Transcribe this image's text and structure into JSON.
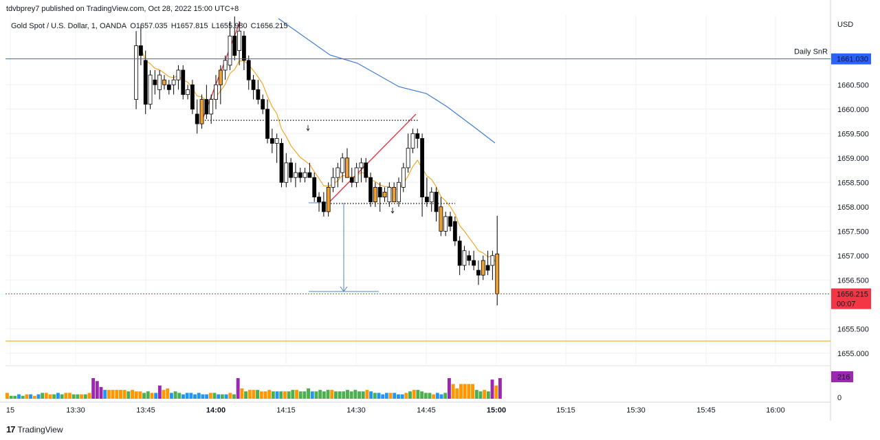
{
  "header": {
    "publisher_line": "tdvbprey7 published on TradingView.com, Oct 28, 2022 15:00 UTC+8"
  },
  "legend": {
    "symbol": "Gold Spot / U.S. Dollar, 1, OANDA",
    "open": "O1657.035",
    "high": "H1657.815",
    "low": "L1655.980",
    "close": "C1656.215"
  },
  "footer": {
    "logo_mark": "17",
    "brand": "TradingView"
  },
  "colors": {
    "up_body": "#ffffff",
    "down_body": "#000000",
    "highlight_body": "#f0a030",
    "ema_fast": "#f5a623",
    "ema_slow": "#3e7bd6",
    "snr_line": "#2962ff",
    "support_line": "#f5a623",
    "last_price": "#f23645",
    "wedge": "#e04050",
    "measure": "#4a86c8",
    "vol_green": "#4caf50",
    "vol_orange": "#ff9800",
    "vol_blue": "#2196f3",
    "vol_red": "#f44336",
    "vol_purple": "#9c27b0"
  },
  "chart_data": {
    "type": "candlestick",
    "currency_label": "USD",
    "y_ticks": [
      "1660.500",
      "1660.000",
      "1659.500",
      "1659.000",
      "1658.500",
      "1658.000",
      "1657.500",
      "1657.000",
      "1656.500",
      "1655.500",
      "1655.000"
    ],
    "ylim": [
      1654.8,
      1661.8
    ],
    "x_ticks": [
      "15",
      "13:30",
      "13:45",
      "14:00",
      "14:15",
      "14:30",
      "14:45",
      "15:00",
      "15:15",
      "15:30",
      "15:45",
      "16:00"
    ],
    "horizontal_levels": [
      {
        "label": "Daily SnR",
        "value": 1661.03,
        "tag": "1661.030"
      },
      {
        "label": "",
        "value": 1655.25,
        "tag": ""
      }
    ],
    "last_price": {
      "value": 1656.215,
      "tag": "1656.215",
      "countdown": "00:07"
    },
    "volume_last": "216",
    "volume_zero_label": "0",
    "candles": [
      {
        "t": "13:43",
        "o": 1660.2,
        "h": 1661.6,
        "l": 1660.0,
        "c": 1661.3,
        "hl": false
      },
      {
        "t": "13:44",
        "o": 1661.3,
        "h": 1661.7,
        "l": 1660.9,
        "c": 1661.1,
        "hl": false
      },
      {
        "t": "13:45",
        "o": 1661.0,
        "h": 1661.2,
        "l": 1659.9,
        "c": 1660.1,
        "hl": false
      },
      {
        "t": "13:46",
        "o": 1660.1,
        "h": 1660.8,
        "l": 1660.0,
        "c": 1660.7,
        "hl": false
      },
      {
        "t": "13:47",
        "o": 1660.6,
        "h": 1660.8,
        "l": 1660.3,
        "c": 1660.5,
        "hl": false
      },
      {
        "t": "13:48",
        "o": 1660.4,
        "h": 1660.8,
        "l": 1660.2,
        "c": 1660.7,
        "hl": false
      },
      {
        "t": "13:49",
        "o": 1660.6,
        "h": 1660.7,
        "l": 1660.4,
        "c": 1660.5,
        "hl": true
      },
      {
        "t": "13:50",
        "o": 1660.5,
        "h": 1660.6,
        "l": 1660.3,
        "c": 1660.4,
        "hl": false
      },
      {
        "t": "13:51",
        "o": 1660.5,
        "h": 1660.7,
        "l": 1660.3,
        "c": 1660.6,
        "hl": false
      },
      {
        "t": "13:52",
        "o": 1660.6,
        "h": 1660.9,
        "l": 1660.4,
        "c": 1660.8,
        "hl": false
      },
      {
        "t": "13:53",
        "o": 1660.8,
        "h": 1660.9,
        "l": 1660.2,
        "c": 1660.3,
        "hl": false
      },
      {
        "t": "13:54",
        "o": 1660.3,
        "h": 1660.5,
        "l": 1660.2,
        "c": 1660.4,
        "hl": false
      },
      {
        "t": "13:55",
        "o": 1660.5,
        "h": 1660.6,
        "l": 1659.9,
        "c": 1660.0,
        "hl": false
      },
      {
        "t": "13:56",
        "o": 1659.9,
        "h": 1660.2,
        "l": 1659.5,
        "c": 1659.7,
        "hl": false
      },
      {
        "t": "13:57",
        "o": 1659.7,
        "h": 1660.3,
        "l": 1659.6,
        "c": 1660.2,
        "hl": true
      },
      {
        "t": "13:58",
        "o": 1660.2,
        "h": 1660.5,
        "l": 1659.8,
        "c": 1659.9,
        "hl": false
      },
      {
        "t": "13:59",
        "o": 1659.9,
        "h": 1660.3,
        "l": 1659.7,
        "c": 1660.2,
        "hl": false
      },
      {
        "t": "14:00",
        "o": 1660.2,
        "h": 1660.7,
        "l": 1660.0,
        "c": 1660.5,
        "hl": false
      },
      {
        "t": "14:01",
        "o": 1660.5,
        "h": 1660.9,
        "l": 1660.1,
        "c": 1660.8,
        "hl": true
      },
      {
        "t": "14:02",
        "o": 1660.8,
        "h": 1661.1,
        "l": 1660.6,
        "c": 1661.0,
        "hl": false
      },
      {
        "t": "14:03",
        "o": 1660.9,
        "h": 1661.8,
        "l": 1660.8,
        "c": 1661.5,
        "hl": false
      },
      {
        "t": "14:04",
        "o": 1661.5,
        "h": 1661.9,
        "l": 1661.0,
        "c": 1661.1,
        "hl": false
      },
      {
        "t": "14:05",
        "o": 1661.2,
        "h": 1661.8,
        "l": 1660.9,
        "c": 1661.6,
        "hl": false
      },
      {
        "t": "14:06",
        "o": 1661.5,
        "h": 1661.6,
        "l": 1660.8,
        "c": 1661.0,
        "hl": false
      },
      {
        "t": "14:07",
        "o": 1661.0,
        "h": 1661.1,
        "l": 1660.4,
        "c": 1660.6,
        "hl": false
      },
      {
        "t": "14:08",
        "o": 1660.6,
        "h": 1660.7,
        "l": 1660.2,
        "c": 1660.4,
        "hl": false
      },
      {
        "t": "14:09",
        "o": 1660.4,
        "h": 1660.6,
        "l": 1660.1,
        "c": 1660.2,
        "hl": false
      },
      {
        "t": "14:10",
        "o": 1660.2,
        "h": 1660.3,
        "l": 1659.9,
        "c": 1660.0,
        "hl": false
      },
      {
        "t": "14:11",
        "o": 1660.0,
        "h": 1660.2,
        "l": 1659.3,
        "c": 1659.4,
        "hl": false
      },
      {
        "t": "14:12",
        "o": 1659.4,
        "h": 1659.6,
        "l": 1659.1,
        "c": 1659.3,
        "hl": false
      },
      {
        "t": "14:13",
        "o": 1659.3,
        "h": 1659.5,
        "l": 1658.9,
        "c": 1659.4,
        "hl": false
      },
      {
        "t": "14:14",
        "o": 1659.3,
        "h": 1659.4,
        "l": 1658.4,
        "c": 1658.5,
        "hl": false
      },
      {
        "t": "14:15",
        "o": 1658.5,
        "h": 1659.1,
        "l": 1658.4,
        "c": 1658.9,
        "hl": false
      },
      {
        "t": "14:16",
        "o": 1658.9,
        "h": 1659.0,
        "l": 1658.5,
        "c": 1658.6,
        "hl": false
      },
      {
        "t": "14:17",
        "o": 1658.6,
        "h": 1658.9,
        "l": 1658.4,
        "c": 1658.7,
        "hl": false
      },
      {
        "t": "14:18",
        "o": 1658.7,
        "h": 1658.8,
        "l": 1658.5,
        "c": 1658.6,
        "hl": false
      },
      {
        "t": "14:19",
        "o": 1658.6,
        "h": 1658.8,
        "l": 1658.5,
        "c": 1658.7,
        "hl": false
      },
      {
        "t": "14:20",
        "o": 1658.7,
        "h": 1658.9,
        "l": 1658.6,
        "c": 1658.6,
        "hl": false
      },
      {
        "t": "14:21",
        "o": 1658.6,
        "h": 1658.7,
        "l": 1658.1,
        "c": 1658.2,
        "hl": false
      },
      {
        "t": "14:22",
        "o": 1658.2,
        "h": 1658.3,
        "l": 1657.9,
        "c": 1658.1,
        "hl": false
      },
      {
        "t": "14:23",
        "o": 1658.1,
        "h": 1658.3,
        "l": 1657.8,
        "c": 1657.9,
        "hl": false
      },
      {
        "t": "14:24",
        "o": 1657.9,
        "h": 1658.5,
        "l": 1657.8,
        "c": 1658.4,
        "hl": true
      },
      {
        "t": "14:25",
        "o": 1658.4,
        "h": 1658.8,
        "l": 1658.3,
        "c": 1658.6,
        "hl": false
      },
      {
        "t": "14:26",
        "o": 1658.6,
        "h": 1658.9,
        "l": 1658.4,
        "c": 1658.8,
        "hl": false
      },
      {
        "t": "14:27",
        "o": 1658.7,
        "h": 1659.1,
        "l": 1658.5,
        "c": 1659.0,
        "hl": false
      },
      {
        "t": "14:28",
        "o": 1659.0,
        "h": 1659.2,
        "l": 1658.6,
        "c": 1658.6,
        "hl": true
      },
      {
        "t": "14:29",
        "o": 1658.6,
        "h": 1658.8,
        "l": 1658.4,
        "c": 1658.5,
        "hl": false
      },
      {
        "t": "14:30",
        "o": 1658.5,
        "h": 1658.9,
        "l": 1658.4,
        "c": 1658.8,
        "hl": false
      },
      {
        "t": "14:31",
        "o": 1658.8,
        "h": 1659.0,
        "l": 1658.5,
        "c": 1658.9,
        "hl": false
      },
      {
        "t": "14:32",
        "o": 1658.9,
        "h": 1659.0,
        "l": 1658.5,
        "c": 1658.6,
        "hl": false
      },
      {
        "t": "14:33",
        "o": 1658.6,
        "h": 1658.7,
        "l": 1658.0,
        "c": 1658.1,
        "hl": false
      },
      {
        "t": "14:34",
        "o": 1658.1,
        "h": 1658.5,
        "l": 1658.0,
        "c": 1658.4,
        "hl": true
      },
      {
        "t": "14:35",
        "o": 1658.4,
        "h": 1658.5,
        "l": 1657.9,
        "c": 1658.2,
        "hl": false
      },
      {
        "t": "14:36",
        "o": 1658.2,
        "h": 1658.4,
        "l": 1658.1,
        "c": 1658.3,
        "hl": true
      },
      {
        "t": "14:37",
        "o": 1658.1,
        "h": 1658.5,
        "l": 1658.0,
        "c": 1658.4,
        "hl": false
      },
      {
        "t": "14:38",
        "o": 1658.4,
        "h": 1658.5,
        "l": 1658.1,
        "c": 1658.1,
        "hl": true
      },
      {
        "t": "14:39",
        "o": 1658.1,
        "h": 1658.6,
        "l": 1658.0,
        "c": 1658.5,
        "hl": false
      },
      {
        "t": "14:40",
        "o": 1658.4,
        "h": 1658.9,
        "l": 1658.3,
        "c": 1658.8,
        "hl": false
      },
      {
        "t": "14:41",
        "o": 1658.8,
        "h": 1659.5,
        "l": 1658.7,
        "c": 1659.2,
        "hl": false
      },
      {
        "t": "14:42",
        "o": 1659.2,
        "h": 1659.6,
        "l": 1659.1,
        "c": 1659.5,
        "hl": false
      },
      {
        "t": "14:43",
        "o": 1659.5,
        "h": 1659.6,
        "l": 1659.2,
        "c": 1659.4,
        "hl": false
      },
      {
        "t": "14:44",
        "o": 1659.4,
        "h": 1659.5,
        "l": 1657.8,
        "c": 1658.2,
        "hl": false
      },
      {
        "t": "14:45",
        "o": 1658.2,
        "h": 1658.6,
        "l": 1658.0,
        "c": 1658.1,
        "hl": false
      },
      {
        "t": "14:46",
        "o": 1658.1,
        "h": 1658.4,
        "l": 1657.9,
        "c": 1658.3,
        "hl": false
      },
      {
        "t": "14:47",
        "o": 1658.3,
        "h": 1658.4,
        "l": 1657.7,
        "c": 1657.9,
        "hl": false
      },
      {
        "t": "14:48",
        "o": 1658.0,
        "h": 1658.2,
        "l": 1657.4,
        "c": 1657.5,
        "hl": true
      },
      {
        "t": "14:49",
        "o": 1657.5,
        "h": 1657.9,
        "l": 1657.4,
        "c": 1657.8,
        "hl": false
      },
      {
        "t": "14:50",
        "o": 1657.8,
        "h": 1657.9,
        "l": 1657.5,
        "c": 1657.6,
        "hl": false
      },
      {
        "t": "14:51",
        "o": 1657.7,
        "h": 1657.8,
        "l": 1657.2,
        "c": 1657.3,
        "hl": false
      },
      {
        "t": "14:52",
        "o": 1657.3,
        "h": 1657.4,
        "l": 1656.6,
        "c": 1656.8,
        "hl": false
      },
      {
        "t": "14:53",
        "o": 1656.8,
        "h": 1657.2,
        "l": 1656.7,
        "c": 1657.1,
        "hl": false
      },
      {
        "t": "14:54",
        "o": 1657.0,
        "h": 1657.1,
        "l": 1656.8,
        "c": 1656.9,
        "hl": false
      },
      {
        "t": "14:55",
        "o": 1656.9,
        "h": 1657.1,
        "l": 1656.7,
        "c": 1656.8,
        "hl": false
      },
      {
        "t": "14:56",
        "o": 1656.7,
        "h": 1656.9,
        "l": 1656.4,
        "c": 1656.6,
        "hl": false
      },
      {
        "t": "14:57",
        "o": 1656.6,
        "h": 1657.0,
        "l": 1656.5,
        "c": 1656.9,
        "hl": true
      },
      {
        "t": "14:58",
        "o": 1656.8,
        "h": 1657.1,
        "l": 1656.6,
        "c": 1656.7,
        "hl": false
      },
      {
        "t": "14:59",
        "o": 1656.8,
        "h": 1657.1,
        "l": 1656.5,
        "c": 1657.0,
        "hl": false
      },
      {
        "t": "15:00",
        "o": 1657.035,
        "h": 1657.815,
        "l": 1655.98,
        "c": 1656.215,
        "hl": true
      }
    ],
    "volumes": [
      {
        "v": 4,
        "c": "orange"
      },
      {
        "v": 2,
        "c": "green"
      },
      {
        "v": 2,
        "c": "green"
      },
      {
        "v": 3,
        "c": "blue"
      },
      {
        "v": 2,
        "c": "green"
      },
      {
        "v": 3,
        "c": "orange"
      },
      {
        "v": 3,
        "c": "blue"
      },
      {
        "v": 2,
        "c": "orange"
      },
      {
        "v": 3,
        "c": "blue"
      },
      {
        "v": 4,
        "c": "green"
      },
      {
        "v": 4,
        "c": "orange"
      },
      {
        "v": 3,
        "c": "orange"
      },
      {
        "v": 3,
        "c": "green"
      },
      {
        "v": 4,
        "c": "blue"
      },
      {
        "v": 3,
        "c": "green"
      },
      {
        "v": 4,
        "c": "orange"
      },
      {
        "v": 4,
        "c": "orange"
      },
      {
        "v": 3,
        "c": "green"
      },
      {
        "v": 3,
        "c": "green"
      },
      {
        "v": 3,
        "c": "orange"
      },
      {
        "v": 3,
        "c": "green"
      },
      {
        "v": 4,
        "c": "orange"
      },
      {
        "v": 14,
        "c": "purple"
      },
      {
        "v": 12,
        "c": "purple"
      },
      {
        "v": 8,
        "c": "purple"
      },
      {
        "v": 6,
        "c": "blue"
      },
      {
        "v": 6,
        "c": "orange"
      },
      {
        "v": 6,
        "c": "orange"
      },
      {
        "v": 6,
        "c": "orange"
      },
      {
        "v": 6,
        "c": "orange"
      },
      {
        "v": 6,
        "c": "orange"
      },
      {
        "v": 5,
        "c": "green"
      },
      {
        "v": 6,
        "c": "orange"
      },
      {
        "v": 5,
        "c": "orange"
      },
      {
        "v": 5,
        "c": "orange"
      },
      {
        "v": 4,
        "c": "green"
      },
      {
        "v": 5,
        "c": "green"
      },
      {
        "v": 4,
        "c": "orange"
      },
      {
        "v": 4,
        "c": "blue"
      },
      {
        "v": 9,
        "c": "purple"
      },
      {
        "v": 6,
        "c": "orange"
      },
      {
        "v": 7,
        "c": "orange"
      },
      {
        "v": 4,
        "c": "blue"
      },
      {
        "v": 5,
        "c": "green"
      },
      {
        "v": 4,
        "c": "green"
      },
      {
        "v": 3,
        "c": "blue"
      },
      {
        "v": 4,
        "c": "blue"
      },
      {
        "v": 4,
        "c": "blue"
      },
      {
        "v": 3,
        "c": "blue"
      },
      {
        "v": 4,
        "c": "blue"
      },
      {
        "v": 3,
        "c": "blue"
      },
      {
        "v": 3,
        "c": "blue"
      },
      {
        "v": 4,
        "c": "orange"
      },
      {
        "v": 4,
        "c": "green"
      },
      {
        "v": 3,
        "c": "blue"
      },
      {
        "v": 3,
        "c": "green"
      },
      {
        "v": 3,
        "c": "blue"
      },
      {
        "v": 4,
        "c": "orange"
      },
      {
        "v": 3,
        "c": "green"
      },
      {
        "v": 14,
        "c": "purple"
      },
      {
        "v": 7,
        "c": "orange"
      },
      {
        "v": 5,
        "c": "green"
      },
      {
        "v": 6,
        "c": "orange"
      },
      {
        "v": 6,
        "c": "orange"
      },
      {
        "v": 6,
        "c": "green"
      },
      {
        "v": 5,
        "c": "orange"
      },
      {
        "v": 5,
        "c": "orange"
      },
      {
        "v": 6,
        "c": "orange"
      },
      {
        "v": 5,
        "c": "green"
      },
      {
        "v": 5,
        "c": "blue"
      },
      {
        "v": 5,
        "c": "green"
      },
      {
        "v": 5,
        "c": "orange"
      },
      {
        "v": 5,
        "c": "green"
      },
      {
        "v": 6,
        "c": "green"
      },
      {
        "v": 6,
        "c": "orange"
      },
      {
        "v": 5,
        "c": "green"
      },
      {
        "v": 5,
        "c": "green"
      },
      {
        "v": 7,
        "c": "green"
      },
      {
        "v": 5,
        "c": "blue"
      },
      {
        "v": 5,
        "c": "green"
      },
      {
        "v": 6,
        "c": "green"
      },
      {
        "v": 5,
        "c": "green"
      },
      {
        "v": 6,
        "c": "green"
      },
      {
        "v": 6,
        "c": "orange"
      },
      {
        "v": 5,
        "c": "green"
      },
      {
        "v": 5,
        "c": "green"
      },
      {
        "v": 5,
        "c": "green"
      },
      {
        "v": 6,
        "c": "green"
      },
      {
        "v": 5,
        "c": "green"
      },
      {
        "v": 6,
        "c": "green"
      },
      {
        "v": 5,
        "c": "green"
      },
      {
        "v": 5,
        "c": "green"
      },
      {
        "v": 6,
        "c": "orange"
      },
      {
        "v": 5,
        "c": "blue"
      },
      {
        "v": 4,
        "c": "green"
      },
      {
        "v": 4,
        "c": "blue"
      },
      {
        "v": 3,
        "c": "blue"
      },
      {
        "v": 4,
        "c": "blue"
      },
      {
        "v": 4,
        "c": "orange"
      },
      {
        "v": 4,
        "c": "blue"
      },
      {
        "v": 3,
        "c": "blue"
      },
      {
        "v": 3,
        "c": "blue"
      },
      {
        "v": 4,
        "c": "orange"
      },
      {
        "v": 5,
        "c": "green"
      },
      {
        "v": 6,
        "c": "orange"
      },
      {
        "v": 6,
        "c": "green"
      },
      {
        "v": 5,
        "c": "green"
      },
      {
        "v": 4,
        "c": "green"
      },
      {
        "v": 4,
        "c": "green"
      },
      {
        "v": 3,
        "c": "orange"
      },
      {
        "v": 4,
        "c": "blue"
      },
      {
        "v": 3,
        "c": "blue"
      },
      {
        "v": 4,
        "c": "green"
      },
      {
        "v": 14,
        "c": "purple"
      },
      {
        "v": 10,
        "c": "orange"
      },
      {
        "v": 7,
        "c": "orange"
      },
      {
        "v": 10,
        "c": "orange"
      },
      {
        "v": 10,
        "c": "orange"
      },
      {
        "v": 10,
        "c": "orange"
      },
      {
        "v": 10,
        "c": "orange"
      },
      {
        "v": 6,
        "c": "green"
      },
      {
        "v": 5,
        "c": "green"
      },
      {
        "v": 6,
        "c": "orange"
      },
      {
        "v": 5,
        "c": "green"
      },
      {
        "v": 13,
        "c": "purple"
      },
      {
        "v": 9,
        "c": "orange"
      },
      {
        "v": 14,
        "c": "purple"
      }
    ]
  }
}
